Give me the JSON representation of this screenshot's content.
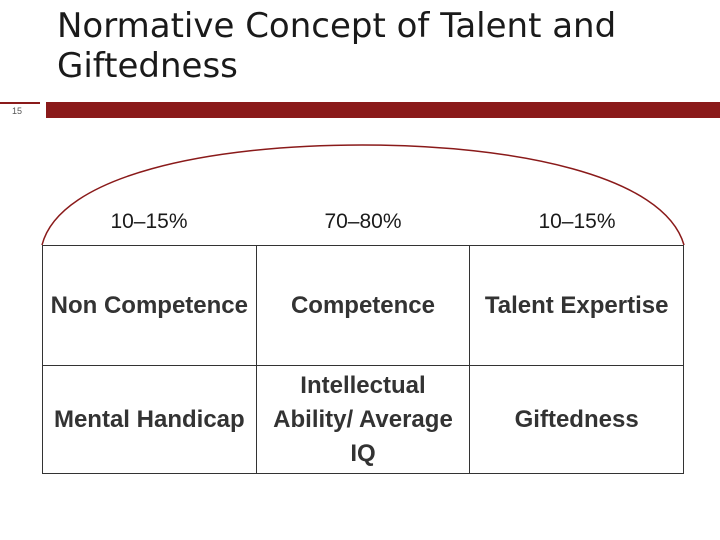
{
  "slide": {
    "title": "Normative Concept of Talent and Giftedness",
    "slide_number": "15",
    "accent_color": "#8a1a1a"
  },
  "percentages": [
    "10–15%",
    "70–80%",
    "10–15%"
  ],
  "table": {
    "rows": [
      [
        "Non Competence",
        "Competence",
        "Talent Expertise"
      ],
      [
        "Mental Handicap",
        "Intellectual Ability/ Average IQ",
        "Giftedness"
      ]
    ]
  }
}
